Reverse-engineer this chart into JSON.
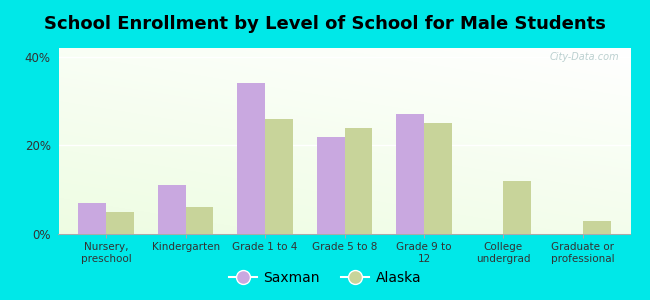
{
  "title": "School Enrollment by Level of School for Male Students",
  "categories": [
    "Nursery,\npreschool",
    "Kindergarten",
    "Grade 1 to 4",
    "Grade 5 to 8",
    "Grade 9 to\n12",
    "College\nundergrad",
    "Graduate or\nprofessional"
  ],
  "saxman": [
    7.0,
    11.0,
    34.0,
    22.0,
    27.0,
    0.0,
    0.0
  ],
  "alaska": [
    5.0,
    6.0,
    26.0,
    24.0,
    25.0,
    12.0,
    3.0
  ],
  "saxman_color": "#c9a8e0",
  "alaska_color": "#c8d49a",
  "background_color": "#00e8e8",
  "yticks": [
    0,
    20,
    40
  ],
  "ylim": [
    0,
    42
  ],
  "legend_saxman": "Saxman",
  "legend_alaska": "Alaska",
  "title_fontsize": 13,
  "watermark": "City-Data.com"
}
